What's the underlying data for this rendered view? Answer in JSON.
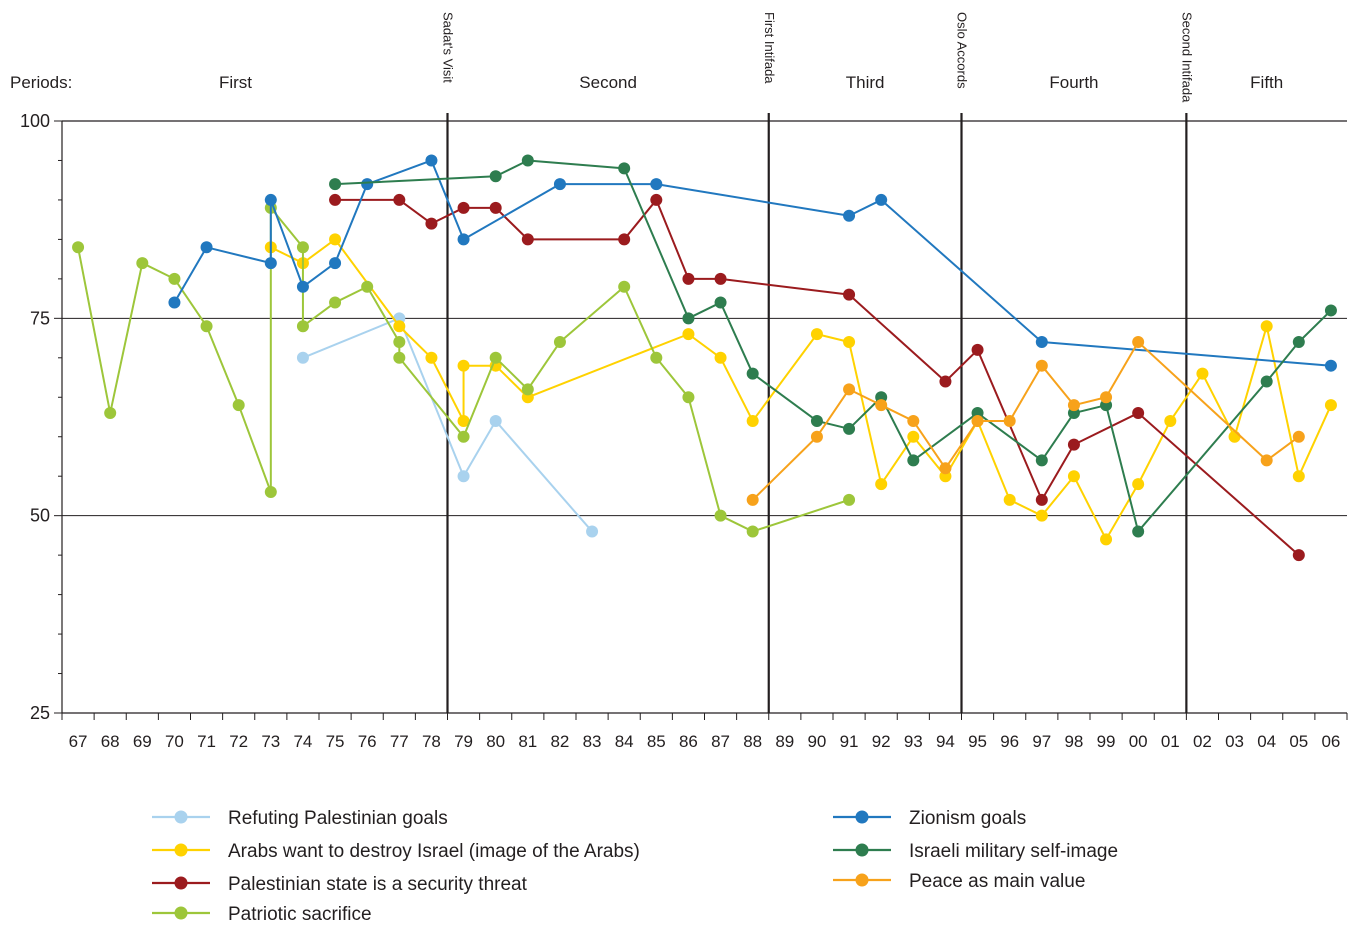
{
  "chart_data": {
    "type": "line",
    "periods_caption": "Periods:",
    "periods": [
      {
        "label": "First",
        "from": 67,
        "to": 79
      },
      {
        "label": "Second",
        "from": 79,
        "to": 89
      },
      {
        "label": "Third",
        "from": 89,
        "to": 95
      },
      {
        "label": "Fourth",
        "from": 95,
        "to": 102
      },
      {
        "label": "Fifth",
        "from": 102,
        "to": 107
      }
    ],
    "events": [
      {
        "label": "Sadat's Visit",
        "year": 79
      },
      {
        "label": "First Intifada",
        "year": 89
      },
      {
        "label": "Oslo Accords",
        "year": 95
      },
      {
        "label": "Second Intifada",
        "year": 102
      }
    ],
    "x_tick_labels": [
      "67",
      "68",
      "69",
      "70",
      "71",
      "72",
      "73",
      "74",
      "75",
      "76",
      "77",
      "78",
      "79",
      "80",
      "81",
      "82",
      "83",
      "84",
      "85",
      "86",
      "87",
      "88",
      "89",
      "90",
      "91",
      "92",
      "93",
      "94",
      "95",
      "96",
      "97",
      "98",
      "99",
      "00",
      "01",
      "02",
      "03",
      "04",
      "05",
      "06"
    ],
    "xlim": [
      67,
      107
    ],
    "ylim": [
      25,
      100
    ],
    "y_ticks": [
      25,
      50,
      75,
      100
    ],
    "grid": "horizontal at 50 and 75",
    "legend_position": "bottom",
    "series": [
      {
        "name": "Refuting Palestinian goals",
        "color": "#a9d2ee",
        "points": [
          [
            74,
            70
          ],
          [
            77,
            75
          ],
          [
            79,
            55
          ],
          [
            80,
            62
          ],
          [
            83,
            48
          ]
        ]
      },
      {
        "name": "Arabs want to destroy Israel (image of the Arabs)",
        "color": "#ffd200",
        "points": [
          [
            73,
            84
          ],
          [
            74,
            82
          ],
          [
            75,
            85
          ],
          [
            77,
            74
          ],
          [
            78,
            70
          ],
          [
            79,
            62
          ],
          [
            79,
            69
          ],
          [
            80,
            69
          ],
          [
            81,
            65
          ],
          [
            86,
            73
          ],
          [
            87,
            70
          ],
          [
            88,
            62
          ],
          [
            90,
            73
          ],
          [
            91,
            72
          ],
          [
            92,
            54
          ],
          [
            93,
            60
          ],
          [
            94,
            55
          ],
          [
            95,
            62
          ],
          [
            96,
            52
          ],
          [
            97,
            50
          ],
          [
            98,
            55
          ],
          [
            99,
            47
          ],
          [
            100,
            54
          ],
          [
            101,
            62
          ],
          [
            102,
            68
          ],
          [
            103,
            60
          ],
          [
            104,
            74
          ],
          [
            105,
            55
          ],
          [
            106,
            64
          ]
        ]
      },
      {
        "name": "Palestinian state is a security threat",
        "color": "#9b1b1e",
        "points": [
          [
            75,
            90
          ],
          [
            77,
            90
          ],
          [
            78,
            87
          ],
          [
            79,
            89
          ],
          [
            80,
            89
          ],
          [
            81,
            85
          ],
          [
            84,
            85
          ],
          [
            85,
            90
          ],
          [
            86,
            80
          ],
          [
            87,
            80
          ],
          [
            91,
            78
          ],
          [
            94,
            67
          ],
          [
            95,
            71
          ],
          [
            97,
            52
          ],
          [
            98,
            59
          ],
          [
            100,
            63
          ],
          [
            105,
            45
          ]
        ]
      },
      {
        "name": "Patriotic sacrifice",
        "color": "#9dc63a",
        "points": [
          [
            67,
            84
          ],
          [
            68,
            63
          ],
          [
            69,
            82
          ],
          [
            70,
            80
          ],
          [
            71,
            74
          ],
          [
            72,
            64
          ],
          [
            73,
            53
          ],
          [
            73,
            89
          ],
          [
            74,
            84
          ],
          [
            74,
            74
          ],
          [
            75,
            77
          ],
          [
            76,
            79
          ],
          [
            77,
            72
          ],
          [
            77,
            70
          ],
          [
            79,
            60
          ],
          [
            80,
            70
          ],
          [
            81,
            66
          ],
          [
            82,
            72
          ],
          [
            84,
            79
          ],
          [
            85,
            70
          ],
          [
            86,
            65
          ],
          [
            87,
            50
          ],
          [
            88,
            48
          ],
          [
            91,
            52
          ]
        ]
      },
      {
        "name": "Zionism goals",
        "color": "#2178bf",
        "points": [
          [
            70,
            77
          ],
          [
            71,
            84
          ],
          [
            73,
            82
          ],
          [
            73,
            90
          ],
          [
            74,
            79
          ],
          [
            75,
            82
          ],
          [
            76,
            92
          ],
          [
            78,
            95
          ],
          [
            79,
            85
          ],
          [
            82,
            92
          ],
          [
            85,
            92
          ],
          [
            91,
            88
          ],
          [
            92,
            90
          ],
          [
            97,
            72
          ],
          [
            106,
            69
          ]
        ]
      },
      {
        "name": "Israeli military self-image",
        "color": "#2e7d4f",
        "points": [
          [
            75,
            92
          ],
          [
            80,
            93
          ],
          [
            81,
            95
          ],
          [
            84,
            94
          ],
          [
            86,
            75
          ],
          [
            87,
            77
          ],
          [
            88,
            68
          ],
          [
            90,
            62
          ],
          [
            91,
            61
          ],
          [
            92,
            65
          ],
          [
            93,
            57
          ],
          [
            95,
            63
          ],
          [
            97,
            57
          ],
          [
            98,
            63
          ],
          [
            99,
            64
          ],
          [
            100,
            48
          ],
          [
            104,
            67
          ],
          [
            105,
            72
          ],
          [
            106,
            76
          ]
        ]
      },
      {
        "name": "Peace as main value",
        "color": "#f7a21b",
        "points": [
          [
            88,
            52
          ],
          [
            90,
            60
          ],
          [
            91,
            66
          ],
          [
            92,
            64
          ],
          [
            93,
            62
          ],
          [
            94,
            56
          ],
          [
            95,
            62
          ],
          [
            96,
            62
          ],
          [
            97,
            69
          ],
          [
            98,
            64
          ],
          [
            99,
            65
          ],
          [
            100,
            72
          ],
          [
            104,
            57
          ],
          [
            105,
            60
          ]
        ]
      }
    ]
  }
}
